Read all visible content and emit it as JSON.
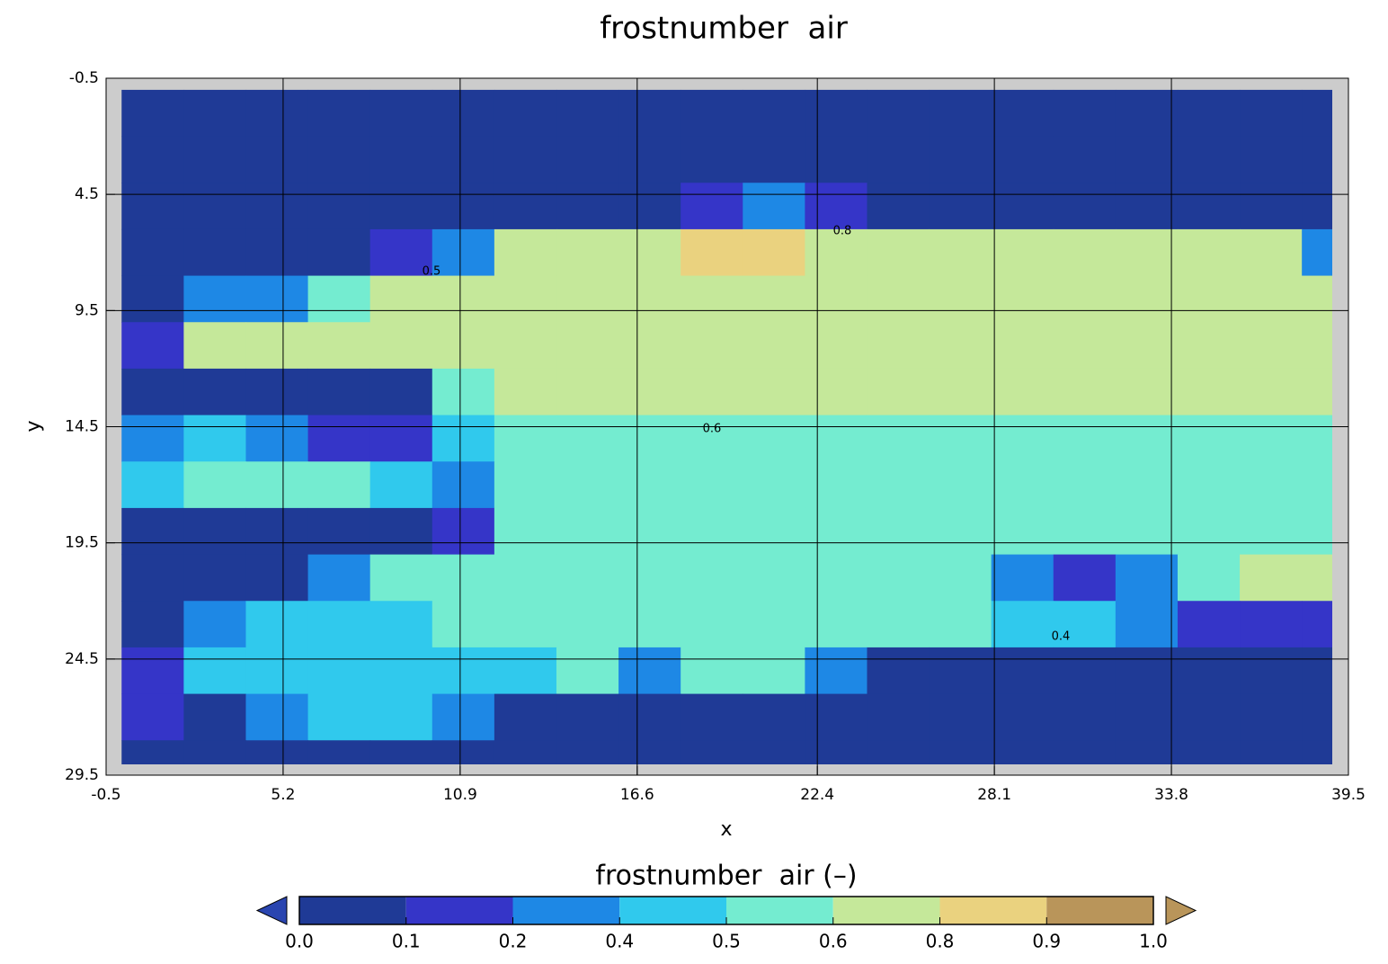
{
  "chart_data": {
    "type": "contour",
    "title": "frostnumber  air",
    "xlabel": "x",
    "ylabel": "y",
    "xlim": [
      -0.5,
      39.5
    ],
    "ylim": [
      29.5,
      -0.5
    ],
    "xticks": [
      -0.5,
      5.2,
      10.9,
      16.6,
      22.4,
      28.1,
      33.8,
      39.5
    ],
    "yticks": [
      -0.5,
      4.5,
      9.5,
      14.5,
      19.5,
      24.5,
      29.5
    ],
    "grid": true,
    "x": [
      1,
      3,
      5,
      7,
      9,
      11,
      13,
      15,
      17,
      19,
      21,
      23,
      25,
      27,
      29,
      31,
      33,
      35,
      37,
      39
    ],
    "y": [
      1,
      3,
      5,
      7,
      9,
      11,
      13,
      15,
      17,
      19,
      21,
      23,
      25,
      27,
      29
    ],
    "z": [
      [
        0,
        0,
        0,
        0,
        0,
        0,
        0,
        0,
        0,
        0,
        0,
        0,
        0,
        0,
        0,
        0,
        0,
        0,
        0,
        0
      ],
      [
        0,
        0,
        0,
        0,
        0,
        0,
        0,
        0,
        0,
        0,
        0,
        0,
        0,
        0,
        0,
        0,
        0,
        0,
        0,
        0
      ],
      [
        0,
        0,
        0,
        0,
        0,
        0,
        0,
        0,
        0,
        0.1,
        0.2,
        0.1,
        0,
        0,
        0,
        0,
        0,
        0,
        0,
        0
      ],
      [
        0,
        0,
        0,
        0,
        0.1,
        0.3,
        0.6,
        0.7,
        0.7,
        0.8,
        0.8,
        0.7,
        0.7,
        0.7,
        0.7,
        0.7,
        0.7,
        0.7,
        0.7,
        0.2
      ],
      [
        0,
        0.3,
        0.3,
        0.5,
        0.7,
        0.7,
        0.7,
        0.7,
        0.7,
        0.7,
        0.7,
        0.7,
        0.7,
        0.7,
        0.7,
        0.7,
        0.7,
        0.7,
        0.7,
        0.7
      ],
      [
        0.1,
        0.7,
        0.6,
        0.6,
        0.65,
        0.7,
        0.7,
        0.7,
        0.7,
        0.7,
        0.7,
        0.7,
        0.7,
        0.7,
        0.7,
        0.7,
        0.7,
        0.7,
        0.7,
        0.7
      ],
      [
        0,
        0,
        0,
        0.05,
        0.05,
        0.55,
        0.62,
        0.62,
        0.62,
        0.62,
        0.62,
        0.62,
        0.62,
        0.62,
        0.62,
        0.62,
        0.62,
        0.62,
        0.65,
        0.65
      ],
      [
        0.2,
        0.4,
        0.3,
        0.1,
        0.1,
        0.4,
        0.55,
        0.55,
        0.55,
        0.55,
        0.55,
        0.55,
        0.55,
        0.55,
        0.55,
        0.55,
        0.55,
        0.55,
        0.55,
        0.55
      ],
      [
        0.4,
        0.55,
        0.55,
        0.55,
        0.4,
        0.2,
        0.55,
        0.55,
        0.55,
        0.55,
        0.55,
        0.55,
        0.55,
        0.55,
        0.55,
        0.55,
        0.55,
        0.55,
        0.55,
        0.55
      ],
      [
        0,
        0,
        0,
        0,
        0,
        0.1,
        0.55,
        0.55,
        0.55,
        0.55,
        0.55,
        0.55,
        0.55,
        0.55,
        0.55,
        0.55,
        0.55,
        0.55,
        0.55,
        0.55
      ],
      [
        0,
        0,
        0.05,
        0.3,
        0.5,
        0.52,
        0.55,
        0.55,
        0.55,
        0.55,
        0.55,
        0.55,
        0.55,
        0.55,
        0.3,
        0.1,
        0.3,
        0.55,
        0.6,
        0.62
      ],
      [
        0,
        0.2,
        0.45,
        0.45,
        0.48,
        0.52,
        0.55,
        0.55,
        0.55,
        0.55,
        0.55,
        0.55,
        0.55,
        0.55,
        0.45,
        0.4,
        0.2,
        0.1,
        0.1,
        0.1
      ],
      [
        0.1,
        0.45,
        0.45,
        0.45,
        0.45,
        0.45,
        0.45,
        0.55,
        0.3,
        0.5,
        0.5,
        0.3,
        0,
        0,
        0,
        0,
        0,
        0,
        0,
        0
      ],
      [
        0.1,
        0.05,
        0.3,
        0.45,
        0.45,
        0.2,
        0.05,
        0,
        0,
        0,
        0,
        0,
        0,
        0,
        0,
        0,
        0,
        0,
        0,
        0
      ],
      [
        0,
        0,
        0,
        0,
        0,
        0,
        0,
        0,
        0,
        0,
        0,
        0,
        0,
        0,
        0,
        0,
        0,
        0,
        0,
        0
      ]
    ],
    "levels": [
      {
        "value": 0,
        "label": "0.0"
      },
      0.1,
      0.2,
      0.4,
      0.5,
      0.6,
      0.8,
      0.9,
      {
        "value": 1,
        "label": "1.0"
      }
    ],
    "colors": [
      "#1f3a96",
      "#3535c8",
      "#1e88e5",
      "#30c9ed",
      "#74ecd0",
      "#c5e89a",
      "#ead27f",
      "#b9955a"
    ],
    "extend_colors": [
      "#2a45b0",
      "#b9955a"
    ],
    "colorbar_label": "frostnumber  air (–)",
    "contour_labels": [
      "0.8",
      "0.6",
      "0.5",
      "0.4"
    ]
  }
}
